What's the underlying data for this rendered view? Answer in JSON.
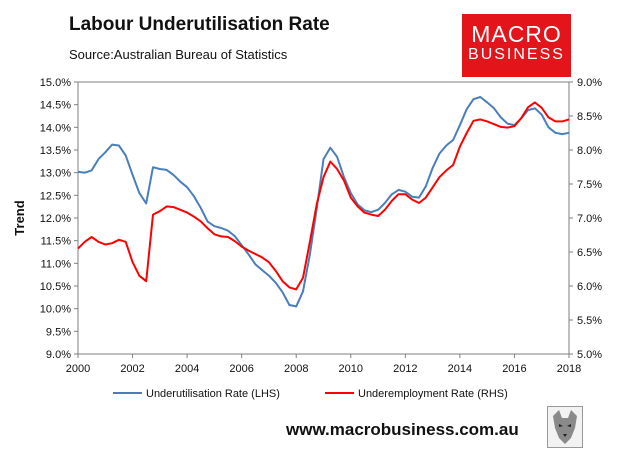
{
  "title": "Labour Underutilisation Rate",
  "source": "Source:Australian Bureau of Statistics",
  "logo": {
    "line1": "MACRO",
    "line2": "BUSINESS"
  },
  "website": "www.macrobusiness.com.au",
  "colors": {
    "underutilisation": "#4a7ebb",
    "underemployment": "#ff0000",
    "logo_bg": "#e3151a"
  },
  "chart_data": {
    "type": "line",
    "ylabel": "Trend",
    "grid": false,
    "legend_position": "bottom",
    "xlim": [
      2000,
      2018
    ],
    "ylim_left": [
      9.0,
      15.0
    ],
    "ylim_right": [
      5.0,
      9.0
    ],
    "x_ticks": [
      "2000",
      "2002",
      "2004",
      "2006",
      "2008",
      "2010",
      "2012",
      "2014",
      "2016",
      "2018"
    ],
    "y_left_ticks": [
      "9.0%",
      "9.5%",
      "10.0%",
      "10.5%",
      "11.0%",
      "11.5%",
      "12.0%",
      "12.5%",
      "13.0%",
      "13.5%",
      "14.0%",
      "14.5%",
      "15.0%"
    ],
    "y_right_ticks": [
      "5.0%",
      "5.5%",
      "6.0%",
      "6.5%",
      "7.0%",
      "7.5%",
      "8.0%",
      "8.5%",
      "9.0%"
    ],
    "series": [
      {
        "name": "Underutilisation Rate (LHS)",
        "axis": "left",
        "color": "#4a7ebb",
        "points": [
          [
            2000.0,
            13.02
          ],
          [
            2000.25,
            13.0
          ],
          [
            2000.5,
            13.05
          ],
          [
            2000.75,
            13.3
          ],
          [
            2001.0,
            13.45
          ],
          [
            2001.25,
            13.62
          ],
          [
            2001.5,
            13.6
          ],
          [
            2001.75,
            13.38
          ],
          [
            2002.0,
            12.95
          ],
          [
            2002.25,
            12.55
          ],
          [
            2002.5,
            12.32
          ],
          [
            2002.75,
            13.12
          ],
          [
            2003.0,
            13.08
          ],
          [
            2003.25,
            13.06
          ],
          [
            2003.5,
            12.95
          ],
          [
            2003.75,
            12.8
          ],
          [
            2004.0,
            12.68
          ],
          [
            2004.25,
            12.48
          ],
          [
            2004.5,
            12.22
          ],
          [
            2004.75,
            11.92
          ],
          [
            2005.0,
            11.82
          ],
          [
            2005.25,
            11.78
          ],
          [
            2005.5,
            11.72
          ],
          [
            2005.75,
            11.6
          ],
          [
            2006.0,
            11.4
          ],
          [
            2006.25,
            11.2
          ],
          [
            2006.5,
            10.98
          ],
          [
            2006.75,
            10.85
          ],
          [
            2007.0,
            10.73
          ],
          [
            2007.25,
            10.57
          ],
          [
            2007.5,
            10.36
          ],
          [
            2007.75,
            10.08
          ],
          [
            2008.0,
            10.05
          ],
          [
            2008.25,
            10.38
          ],
          [
            2008.5,
            11.2
          ],
          [
            2008.75,
            12.2
          ],
          [
            2009.0,
            13.3
          ],
          [
            2009.25,
            13.55
          ],
          [
            2009.5,
            13.35
          ],
          [
            2009.75,
            12.9
          ],
          [
            2010.0,
            12.55
          ],
          [
            2010.25,
            12.3
          ],
          [
            2010.5,
            12.17
          ],
          [
            2010.75,
            12.13
          ],
          [
            2011.0,
            12.18
          ],
          [
            2011.25,
            12.33
          ],
          [
            2011.5,
            12.52
          ],
          [
            2011.75,
            12.62
          ],
          [
            2012.0,
            12.58
          ],
          [
            2012.25,
            12.47
          ],
          [
            2012.5,
            12.45
          ],
          [
            2012.75,
            12.7
          ],
          [
            2013.0,
            13.1
          ],
          [
            2013.25,
            13.42
          ],
          [
            2013.5,
            13.6
          ],
          [
            2013.75,
            13.72
          ],
          [
            2014.0,
            14.05
          ],
          [
            2014.25,
            14.4
          ],
          [
            2014.5,
            14.62
          ],
          [
            2014.75,
            14.67
          ],
          [
            2015.0,
            14.55
          ],
          [
            2015.25,
            14.42
          ],
          [
            2015.5,
            14.22
          ],
          [
            2015.75,
            14.08
          ],
          [
            2016.0,
            14.05
          ],
          [
            2016.25,
            14.2
          ],
          [
            2016.5,
            14.38
          ],
          [
            2016.75,
            14.42
          ],
          [
            2017.0,
            14.28
          ],
          [
            2017.25,
            14.0
          ],
          [
            2017.5,
            13.88
          ],
          [
            2017.75,
            13.85
          ],
          [
            2018.0,
            13.88
          ]
        ]
      },
      {
        "name": "Underemployment Rate (RHS)",
        "axis": "right",
        "color": "#ff0000",
        "points": [
          [
            2000.0,
            6.55
          ],
          [
            2000.25,
            6.65
          ],
          [
            2000.5,
            6.72
          ],
          [
            2000.75,
            6.65
          ],
          [
            2001.0,
            6.61
          ],
          [
            2001.25,
            6.63
          ],
          [
            2001.5,
            6.68
          ],
          [
            2001.75,
            6.65
          ],
          [
            2002.0,
            6.35
          ],
          [
            2002.25,
            6.15
          ],
          [
            2002.5,
            6.07
          ],
          [
            2002.75,
            7.05
          ],
          [
            2003.0,
            7.1
          ],
          [
            2003.25,
            7.17
          ],
          [
            2003.5,
            7.16
          ],
          [
            2003.75,
            7.12
          ],
          [
            2004.0,
            7.08
          ],
          [
            2004.25,
            7.02
          ],
          [
            2004.5,
            6.95
          ],
          [
            2004.75,
            6.85
          ],
          [
            2005.0,
            6.76
          ],
          [
            2005.25,
            6.73
          ],
          [
            2005.5,
            6.72
          ],
          [
            2005.75,
            6.66
          ],
          [
            2006.0,
            6.58
          ],
          [
            2006.25,
            6.52
          ],
          [
            2006.5,
            6.47
          ],
          [
            2006.75,
            6.42
          ],
          [
            2007.0,
            6.35
          ],
          [
            2007.25,
            6.22
          ],
          [
            2007.5,
            6.07
          ],
          [
            2007.75,
            5.98
          ],
          [
            2008.0,
            5.95
          ],
          [
            2008.25,
            6.12
          ],
          [
            2008.5,
            6.65
          ],
          [
            2008.75,
            7.2
          ],
          [
            2009.0,
            7.6
          ],
          [
            2009.25,
            7.83
          ],
          [
            2009.5,
            7.72
          ],
          [
            2009.75,
            7.55
          ],
          [
            2010.0,
            7.3
          ],
          [
            2010.25,
            7.17
          ],
          [
            2010.5,
            7.08
          ],
          [
            2010.75,
            7.05
          ],
          [
            2011.0,
            7.03
          ],
          [
            2011.25,
            7.12
          ],
          [
            2011.5,
            7.25
          ],
          [
            2011.75,
            7.35
          ],
          [
            2012.0,
            7.35
          ],
          [
            2012.25,
            7.27
          ],
          [
            2012.5,
            7.22
          ],
          [
            2012.75,
            7.3
          ],
          [
            2013.0,
            7.45
          ],
          [
            2013.25,
            7.6
          ],
          [
            2013.5,
            7.7
          ],
          [
            2013.75,
            7.78
          ],
          [
            2014.0,
            8.05
          ],
          [
            2014.25,
            8.25
          ],
          [
            2014.5,
            8.43
          ],
          [
            2014.75,
            8.45
          ],
          [
            2015.0,
            8.42
          ],
          [
            2015.25,
            8.38
          ],
          [
            2015.5,
            8.34
          ],
          [
            2015.75,
            8.33
          ],
          [
            2016.0,
            8.35
          ],
          [
            2016.25,
            8.47
          ],
          [
            2016.5,
            8.63
          ],
          [
            2016.75,
            8.7
          ],
          [
            2017.0,
            8.62
          ],
          [
            2017.25,
            8.48
          ],
          [
            2017.5,
            8.42
          ],
          [
            2017.75,
            8.42
          ],
          [
            2018.0,
            8.45
          ]
        ]
      }
    ]
  }
}
